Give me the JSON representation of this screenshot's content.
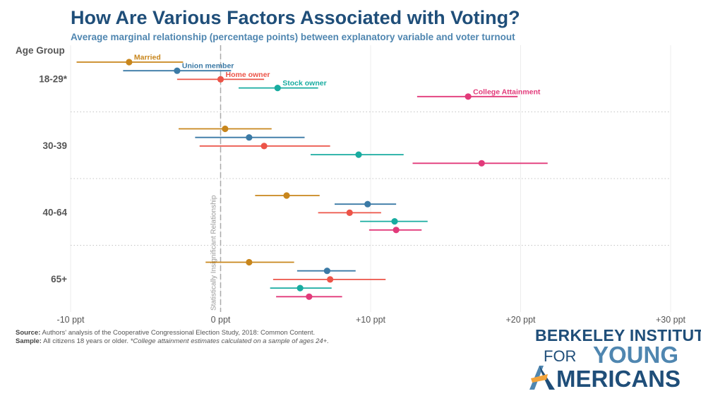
{
  "header": {
    "title": "How Are Various Factors Associated with Voting?",
    "subtitle": "Average marginal relationship (percentage points) between explanatory variable and voter turnout"
  },
  "chart_data": {
    "type": "scatter",
    "subtype": "dot-and-whisker",
    "y_axis_title": "Age Group",
    "groups": [
      "18-29*",
      "30-39",
      "40-64",
      "65+"
    ],
    "x_ticks": [
      -10,
      0,
      10,
      20,
      30
    ],
    "x_tick_labels": [
      "-10 ppt",
      "0 ppt",
      "+10 ppt",
      "+20 ppt",
      "+30 ppt"
    ],
    "xlim": [
      -10.5,
      30.5
    ],
    "reference_line": {
      "x": 0,
      "label": "Statistically Insignificant Relationship"
    },
    "grid": true,
    "series": [
      {
        "name": "Married",
        "color": "#c8861c",
        "points": [
          {
            "group": "18-29*",
            "estimate": -6.1,
            "low": -9.6,
            "high": -2.5
          },
          {
            "group": "30-39",
            "estimate": 0.3,
            "low": -2.8,
            "high": 3.4
          },
          {
            "group": "40-64",
            "estimate": 4.4,
            "low": 2.3,
            "high": 6.6
          },
          {
            "group": "65+",
            "estimate": 1.9,
            "low": -1.0,
            "high": 4.9
          }
        ]
      },
      {
        "name": "Union member",
        "color": "#3b7aa6",
        "points": [
          {
            "group": "18-29*",
            "estimate": -2.9,
            "low": -6.5,
            "high": 0.7
          },
          {
            "group": "30-39",
            "estimate": 1.9,
            "low": -1.7,
            "high": 5.6
          },
          {
            "group": "40-64",
            "estimate": 9.8,
            "low": 7.6,
            "high": 11.7
          },
          {
            "group": "65+",
            "estimate": 7.1,
            "low": 5.1,
            "high": 9.0
          }
        ]
      },
      {
        "name": "Home owner",
        "color": "#ec5448",
        "points": [
          {
            "group": "18-29*",
            "estimate": 0.0,
            "low": -2.9,
            "high": 2.9
          },
          {
            "group": "30-39",
            "estimate": 2.9,
            "low": -1.4,
            "high": 7.3
          },
          {
            "group": "40-64",
            "estimate": 8.6,
            "low": 6.5,
            "high": 10.7
          },
          {
            "group": "65+",
            "estimate": 7.3,
            "low": 3.5,
            "high": 11.0
          }
        ]
      },
      {
        "name": "Stock owner",
        "color": "#18aca0",
        "points": [
          {
            "group": "18-29*",
            "estimate": 3.8,
            "low": 1.2,
            "high": 6.5
          },
          {
            "group": "30-39",
            "estimate": 9.2,
            "low": 6.0,
            "high": 12.2
          },
          {
            "group": "40-64",
            "estimate": 11.6,
            "low": 9.3,
            "high": 13.8
          },
          {
            "group": "65+",
            "estimate": 5.3,
            "low": 3.3,
            "high": 7.4
          }
        ]
      },
      {
        "name": "College Attainment",
        "color": "#e23a7a",
        "points": [
          {
            "group": "18-29*",
            "estimate": 16.5,
            "low": 13.1,
            "high": 19.8
          },
          {
            "group": "30-39",
            "estimate": 17.4,
            "low": 12.8,
            "high": 21.8
          },
          {
            "group": "40-64",
            "estimate": 11.7,
            "low": 9.9,
            "high": 13.4
          },
          {
            "group": "65+",
            "estimate": 5.9,
            "low": 3.7,
            "high": 8.1
          }
        ]
      }
    ]
  },
  "footer": {
    "source_label": "Source:",
    "source_text": "Authors' analysis of the Cooperative Congressional Election Study, 2018: Common Content.",
    "sample_label": "Sample:",
    "sample_text": "All citizens 18 years or older.",
    "sample_note": "*College attainment estimates calculated on a sample of ages 24+."
  },
  "logo": {
    "line1": "BERKELEY INSTITUTE",
    "line2a": "FOR",
    "line2b": "YOUNG",
    "line3": "MERICANS",
    "colors": {
      "dark": "#1f4e79",
      "light": "#4f86b0",
      "accent": "#f2a33a"
    }
  }
}
